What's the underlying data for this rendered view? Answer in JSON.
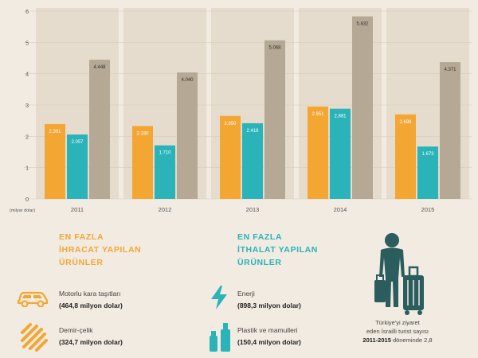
{
  "chart_data": {
    "type": "bar",
    "ylabel": "(milyar dolar)",
    "ylim": [
      0,
      6
    ],
    "yticks": [
      "0",
      "1",
      "2",
      "3",
      "4",
      "5",
      "6"
    ],
    "categories": [
      "2011",
      "2012",
      "2013",
      "2014",
      "2015"
    ],
    "series": [
      {
        "color": "#f4a633",
        "values": [
          2.391,
          2.33,
          2.65,
          2.951,
          2.698
        ],
        "labels": [
          "2.391",
          "2.330",
          "2.650",
          "2.951",
          "2.698"
        ]
      },
      {
        "color": "#2ab3b8",
        "values": [
          2.057,
          1.71,
          2.418,
          2.881,
          1.673
        ],
        "labels": [
          "2.057",
          "1.710",
          "2.418",
          "2.881",
          "1.673"
        ]
      },
      {
        "color": "#b5a894",
        "values": [
          4.448,
          4.04,
          5.068,
          5.832,
          4.371
        ],
        "labels": [
          "4.448",
          "4.040",
          "5.068",
          "5.832",
          "4.371"
        ]
      }
    ]
  },
  "export": {
    "title_lines": [
      "EN FAZLA",
      "İHRACAT YAPILAN",
      "ÜRÜNLER"
    ],
    "items": [
      {
        "icon": "car-icon",
        "name": "Motorlu kara taşıtları",
        "value": "(464,8 milyon dolar)"
      },
      {
        "icon": "steel-icon",
        "name": "Demir-çelik",
        "value": "(324,7 milyon dolar)"
      }
    ]
  },
  "import": {
    "title_lines": [
      "EN FAZLA",
      "İTHALAT YAPILAN",
      "ÜRÜNLER"
    ],
    "items": [
      {
        "icon": "lightning-icon",
        "name": "Enerji",
        "value": "(898,3 milyon dolar)"
      },
      {
        "icon": "bottles-icon",
        "name": "Plastik ve mamulleri",
        "value": "(150,4 milyon dolar)"
      }
    ]
  },
  "tourist": {
    "icon": "traveler-with-luggage-icon",
    "line1": "Türkiye'yi ziyaret",
    "line2": "eden İsrailli turist sayısı",
    "line3_bold": "2011-2015",
    "line3_rest": "döneminde 2,8"
  },
  "colors": {
    "export": "#f4a633",
    "import": "#2ab3b8",
    "total": "#b5a894",
    "background": "#f1ebe1"
  }
}
